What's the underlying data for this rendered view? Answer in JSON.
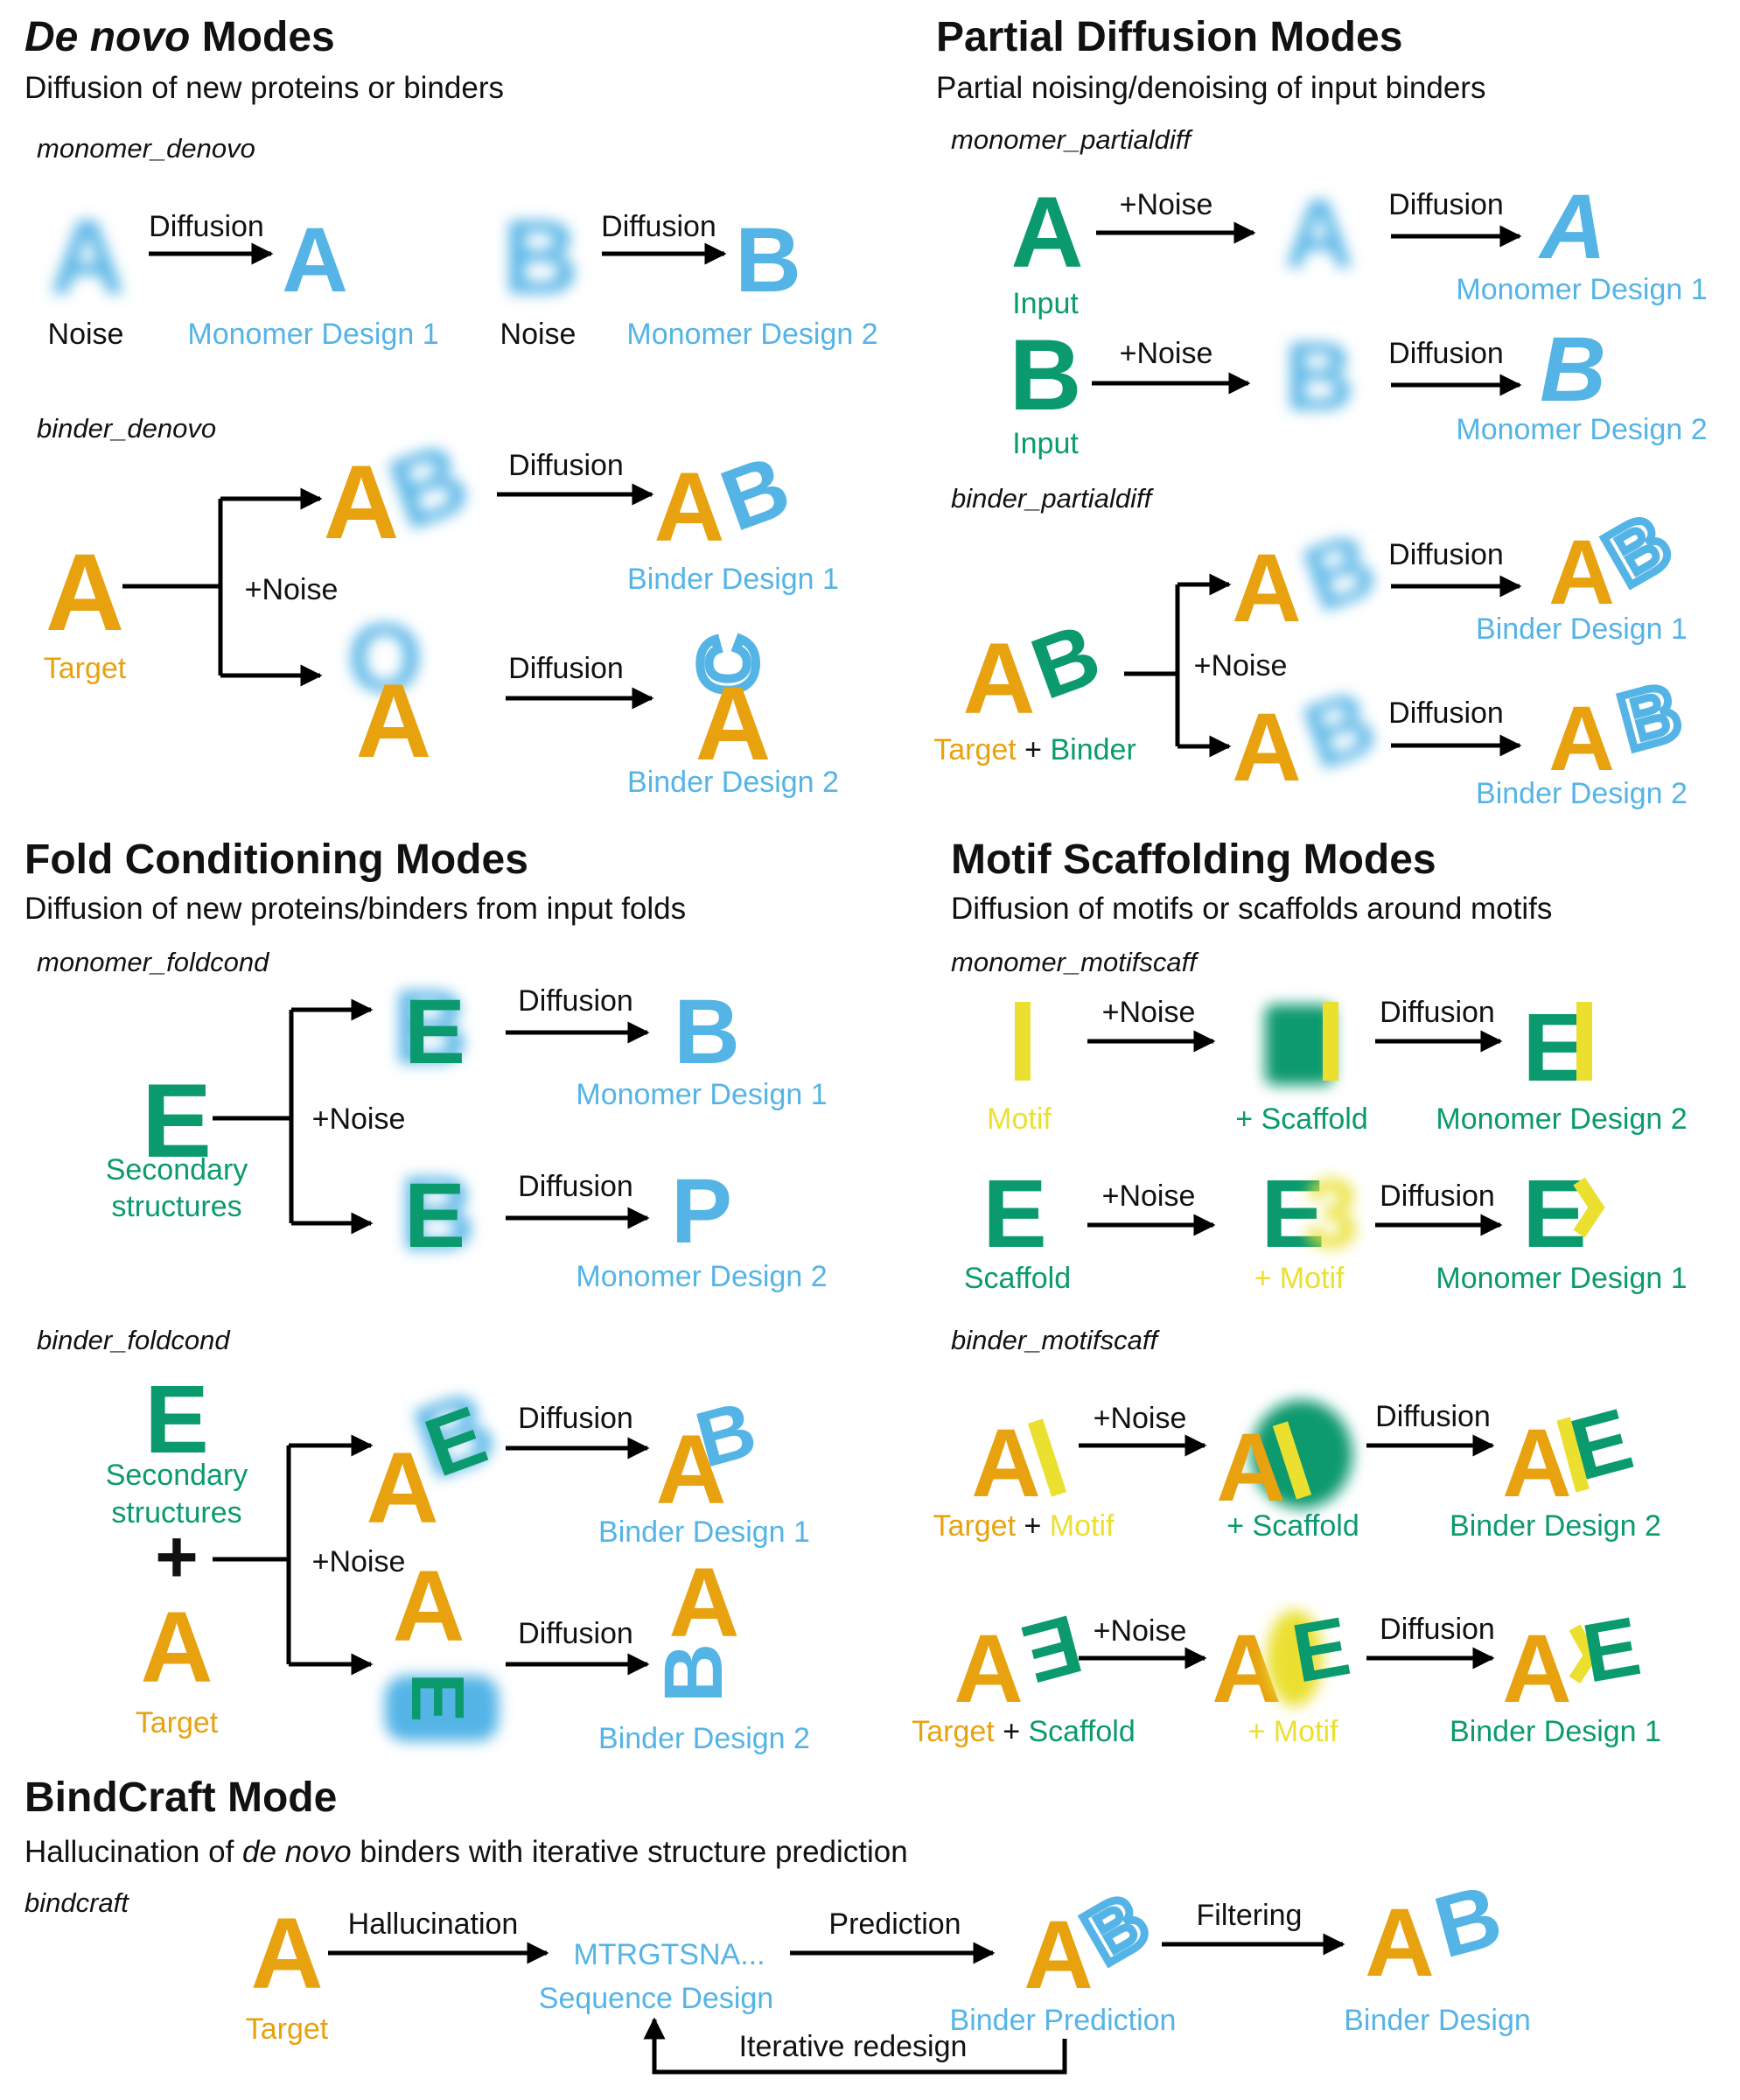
{
  "colors": {
    "orange": "#E8A20F",
    "blue": "#55B4E6",
    "green": "#0B9A6E",
    "yellow": "#EBE030",
    "black": "#111111"
  },
  "denovo": {
    "title_italic": "De novo",
    "title_rest": " Modes",
    "subtitle": "Diffusion of new proteins or binders",
    "monomer_mode": "monomer_denovo",
    "binder_mode": "binder_denovo",
    "noise_label": "Noise",
    "diffusion_label": "Diffusion",
    "noise_plus_label": "+Noise",
    "monomer_design_1": "Monomer Design 1",
    "monomer_design_2": "Monomer Design 2",
    "target_label": "Target",
    "binder_design_1": "Binder Design 1",
    "binder_design_2": "Binder Design 2"
  },
  "partial": {
    "title": "Partial Diffusion Modes",
    "subtitle": "Partial noising/denoising of input binders",
    "monomer_mode": "monomer_partialdiff",
    "binder_mode": "binder_partialdiff",
    "input_label": "Input",
    "noise_plus_label": "+Noise",
    "diffusion_label": "Diffusion",
    "monomer_design_1": "Monomer Design 1",
    "monomer_design_2": "Monomer Design 2",
    "target_label": "Target",
    "plus": " + ",
    "binder_label": "Binder",
    "binder_design_1": "Binder Design 1",
    "binder_design_2": "Binder Design 2"
  },
  "fold": {
    "title": "Fold Conditioning Modes",
    "subtitle": "Diffusion of new proteins/binders from input folds",
    "monomer_mode": "monomer_foldcond",
    "binder_mode": "binder_foldcond",
    "secondary_line1": "Secondary",
    "secondary_line2": "structures",
    "noise_plus_label": "+Noise",
    "diffusion_label": "Diffusion",
    "monomer_design_1": "Monomer Design 1",
    "monomer_design_2": "Monomer Design 2",
    "plus_sign": "+",
    "target_label": "Target",
    "binder_design_1": "Binder Design 1",
    "binder_design_2": "Binder Design 2"
  },
  "motif": {
    "title": "Motif Scaffolding Modes",
    "subtitle": "Diffusion of motifs or scaffolds around motifs",
    "monomer_mode": "monomer_motifscaff",
    "binder_mode": "binder_motifscaff",
    "motif_label": "Motif",
    "scaffold_label": "Scaffold",
    "plus_scaffold": "+ Scaffold",
    "plus_motif": "+ Motif",
    "noise_plus_label": "+Noise",
    "diffusion_label": "Diffusion",
    "monomer_design_2": "Monomer Design 2",
    "monomer_design_1": "Monomer Design 1",
    "target_label": "Target",
    "plus": " + ",
    "binder_design_2": "Binder Design 2",
    "binder_design_1": "Binder Design 1"
  },
  "bindcraft": {
    "title": "BindCraft Mode",
    "subtitle_pre": "Hallucination of ",
    "subtitle_italic": "de novo",
    "subtitle_post": " binders with iterative structure prediction",
    "mode": "bindcraft",
    "target_label": "Target",
    "hallucination_label": "Hallucination",
    "sequence": "MTRGTSNA...",
    "sequence_design": "Sequence Design",
    "prediction_label": "Prediction",
    "binder_prediction": "Binder Prediction",
    "filtering_label": "Filtering",
    "binder_design": "Binder Design",
    "iterative_label": "Iterative redesign"
  }
}
